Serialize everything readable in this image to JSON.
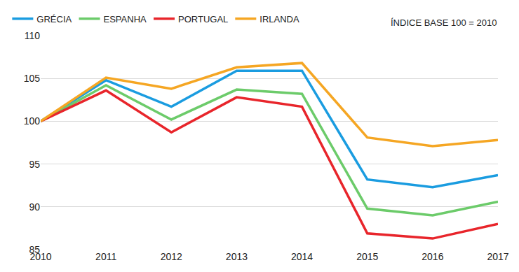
{
  "chart_data": {
    "type": "line",
    "subtitle": "ÍNDICE BASE 100 = 2010",
    "categories": [
      "2010",
      "2011",
      "2012",
      "2013",
      "2014",
      "2015",
      "2016",
      "2017"
    ],
    "series": [
      {
        "name": "GRÉCIA",
        "color": "#1a9ce0",
        "values": [
          100,
          104.8,
          101.7,
          105.9,
          105.9,
          93.2,
          92.3,
          93.7
        ]
      },
      {
        "name": "ESPANHA",
        "color": "#6ccb6a",
        "values": [
          100,
          104.2,
          100.2,
          103.7,
          103.2,
          89.8,
          89.0,
          90.6
        ]
      },
      {
        "name": "PORTUGAL",
        "color": "#e8252b",
        "values": [
          100,
          103.6,
          98.7,
          102.8,
          101.7,
          86.9,
          86.3,
          88.0
        ]
      },
      {
        "name": "IRLANDA",
        "color": "#f5a623",
        "values": [
          100,
          105.1,
          103.8,
          106.3,
          106.8,
          98.1,
          97.1,
          97.8
        ]
      }
    ],
    "ylim": [
      85,
      110
    ],
    "yticks": [
      85,
      90,
      95,
      100,
      105,
      110
    ],
    "grid": true,
    "legend": "top"
  }
}
